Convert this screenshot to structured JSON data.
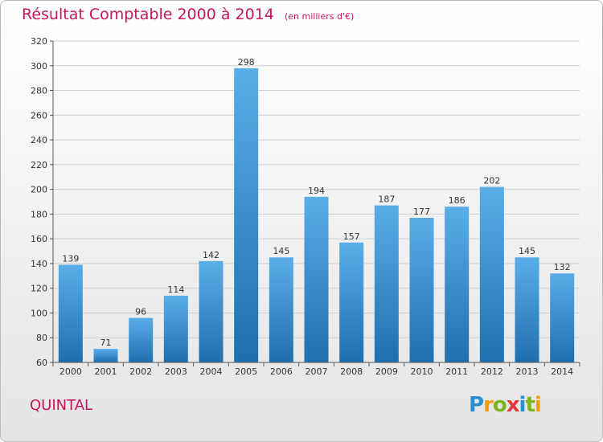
{
  "header": {
    "title": "Résultat Comptable 2000 à 2014",
    "subtitle": "(en milliers d'€)"
  },
  "footer": {
    "commune": "QUINTAL",
    "logo": "Proxiti"
  },
  "colors": {
    "accent": "#c2185b",
    "bar_top": "#5aaee8",
    "bar_bottom": "#1f6fae",
    "logo_letters": [
      "#2a8fd0",
      "#f39c12",
      "#7ab51d",
      "#e03a3a",
      "#2a8fd0",
      "#7ab51d",
      "#f39c12"
    ]
  },
  "chart_data": {
    "type": "bar",
    "categories": [
      "2000",
      "2001",
      "2002",
      "2003",
      "2004",
      "2005",
      "2006",
      "2007",
      "2008",
      "2009",
      "2010",
      "2011",
      "2012",
      "2013",
      "2014"
    ],
    "values": [
      139,
      71,
      96,
      114,
      142,
      298,
      145,
      194,
      157,
      187,
      177,
      186,
      202,
      145,
      132
    ],
    "ylim": [
      60,
      320
    ],
    "yticks": [
      60,
      80,
      100,
      120,
      140,
      160,
      180,
      200,
      220,
      240,
      260,
      280,
      300,
      320
    ],
    "grid": true,
    "legend": "none"
  }
}
